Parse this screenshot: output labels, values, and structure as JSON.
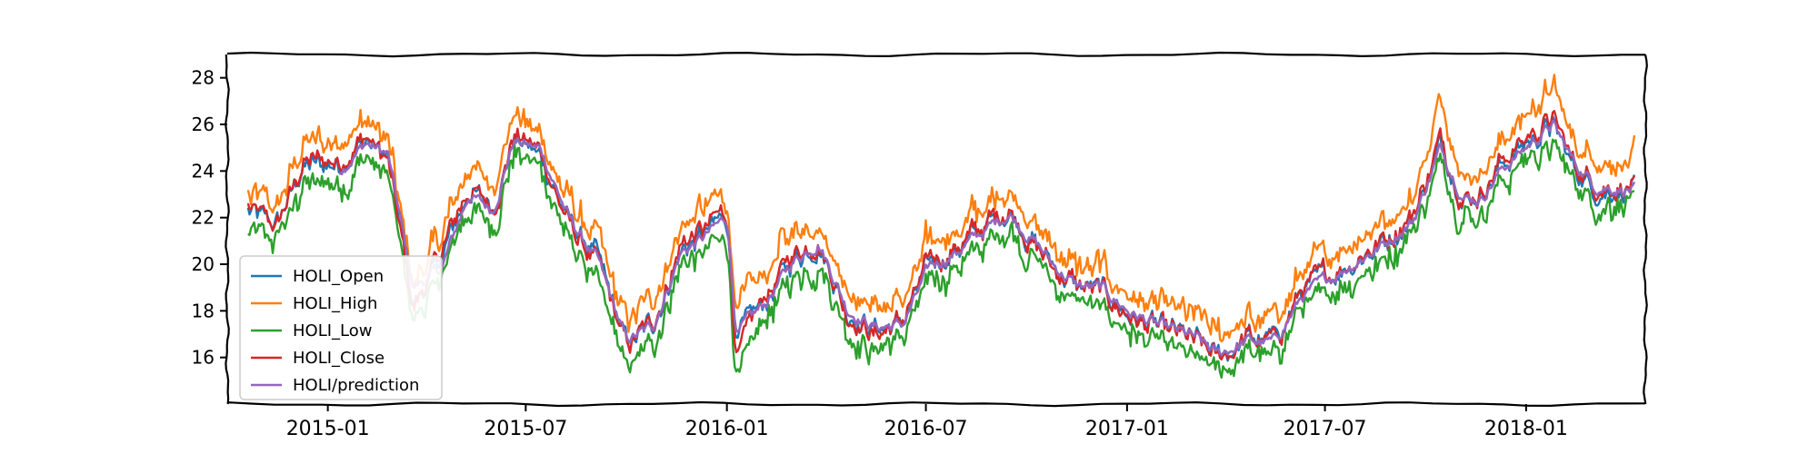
{
  "chart_data": {
    "type": "line",
    "title": "",
    "xlabel": "",
    "ylabel": "",
    "x_range": [
      "2014-10-01",
      "2018-04-20"
    ],
    "ylim": [
      14.0,
      29.0
    ],
    "y_ticks": [
      16,
      18,
      20,
      22,
      24,
      26,
      28
    ],
    "x_ticks": [
      "2015-01",
      "2015-07",
      "2016-01",
      "2016-07",
      "2017-01",
      "2017-07",
      "2018-01"
    ],
    "x_tick_dates": [
      "2015-01-01",
      "2015-07-01",
      "2016-01-01",
      "2016-07-01",
      "2017-01-01",
      "2017-07-01",
      "2018-01-01"
    ],
    "grid": false,
    "style": "xkcd hand-drawn",
    "legend": {
      "position": "bottom-left"
    },
    "x": [
      "2014-10-20",
      "2014-11-15",
      "2014-12-10",
      "2015-01-10",
      "2015-02-05",
      "2015-02-25",
      "2015-03-20",
      "2015-04-15",
      "2015-05-10",
      "2015-06-01",
      "2015-06-20",
      "2015-07-15",
      "2015-08-10",
      "2015-09-05",
      "2015-10-01",
      "2015-10-25",
      "2015-11-20",
      "2015-12-10",
      "2016-01-01",
      "2016-01-10",
      "2016-02-05",
      "2016-03-01",
      "2016-03-25",
      "2016-04-20",
      "2016-05-15",
      "2016-06-10",
      "2016-07-05",
      "2016-07-25",
      "2016-08-20",
      "2016-09-15",
      "2016-10-10",
      "2016-10-25",
      "2016-11-15",
      "2016-12-10",
      "2017-01-05",
      "2017-02-01",
      "2017-03-01",
      "2017-03-25",
      "2017-04-20",
      "2017-05-15",
      "2017-06-10",
      "2017-07-05",
      "2017-08-01",
      "2017-08-25",
      "2017-09-20",
      "2017-10-15",
      "2017-11-05",
      "2017-11-20",
      "2017-12-10",
      "2018-01-01",
      "2018-01-25",
      "2018-02-15",
      "2018-03-05",
      "2018-03-20",
      "2018-04-10"
    ],
    "series": [
      {
        "name": "HOLI_Open",
        "color": "#1f77b4",
        "values": [
          22.2,
          21.6,
          24.2,
          24.3,
          25.3,
          24.5,
          18.2,
          20.2,
          23.2,
          22.5,
          25.4,
          24.6,
          21.8,
          20.2,
          16.5,
          17.4,
          20.6,
          21.2,
          22.0,
          16.8,
          18.4,
          20.2,
          21.0,
          18.0,
          17.2,
          17.5,
          20.0,
          20.5,
          21.4,
          22.3,
          20.8,
          20.0,
          19.0,
          18.8,
          17.8,
          17.2,
          16.8,
          16.0,
          16.8,
          16.7,
          18.8,
          19.5,
          20.3,
          21.0,
          22.0,
          25.2,
          22.8,
          23.0,
          24.3,
          25.2,
          26.0,
          24.0,
          23.3,
          23.2,
          23.3
        ]
      },
      {
        "name": "HOLI_High",
        "color": "#ff7f0e",
        "values": [
          22.8,
          22.2,
          25.1,
          25.1,
          26.2,
          25.2,
          19.0,
          21.1,
          24.2,
          23.2,
          26.4,
          25.4,
          22.6,
          20.8,
          17.3,
          18.3,
          21.6,
          22.2,
          22.6,
          17.8,
          19.5,
          21.4,
          21.7,
          18.9,
          18.1,
          18.3,
          20.8,
          21.3,
          22.1,
          23.1,
          21.5,
          20.7,
          19.8,
          19.5,
          18.5,
          17.9,
          17.6,
          16.8,
          17.4,
          17.4,
          19.5,
          20.2,
          21.1,
          21.8,
          22.8,
          26.8,
          23.7,
          23.9,
          25.2,
          26.3,
          27.4,
          25.0,
          24.5,
          24.3,
          24.4
        ]
      },
      {
        "name": "HOLI_Low",
        "color": "#2ca02c",
        "values": [
          21.5,
          21.0,
          23.5,
          23.5,
          24.6,
          23.8,
          17.6,
          19.6,
          22.6,
          21.8,
          24.9,
          24.1,
          21.0,
          19.3,
          15.6,
          16.7,
          20.0,
          20.6,
          21.2,
          15.2,
          17.8,
          19.5,
          20.4,
          17.3,
          16.4,
          16.9,
          19.4,
          19.9,
          20.8,
          21.8,
          20.2,
          19.3,
          18.5,
          18.1,
          17.2,
          16.6,
          16.1,
          15.4,
          16.3,
          16.1,
          18.2,
          18.9,
          19.7,
          20.4,
          21.5,
          24.6,
          22.2,
          22.4,
          23.6,
          24.6,
          25.2,
          23.5,
          22.8,
          22.8,
          23.0
        ]
      },
      {
        "name": "HOLI_Close",
        "color": "#d62728",
        "values": [
          22.4,
          21.5,
          24.4,
          24.4,
          25.5,
          24.4,
          18.1,
          20.5,
          23.3,
          22.4,
          25.6,
          24.8,
          21.6,
          20.0,
          16.4,
          17.5,
          20.9,
          21.4,
          22.3,
          16.0,
          18.6,
          20.4,
          21.1,
          17.9,
          17.0,
          17.6,
          20.1,
          20.6,
          21.5,
          22.5,
          20.7,
          19.9,
          19.1,
          18.7,
          17.7,
          17.1,
          16.7,
          15.9,
          16.8,
          16.6,
          18.9,
          19.6,
          20.4,
          21.1,
          22.2,
          25.4,
          22.9,
          23.1,
          24.5,
          25.4,
          26.3,
          24.2,
          23.5,
          23.4,
          23.3
        ]
      },
      {
        "name": "HOLI/prediction",
        "color": "#9467bd",
        "values": [
          null,
          null,
          null,
          24.0,
          25.2,
          24.7,
          19.0,
          19.8,
          23.0,
          22.3,
          25.3,
          24.9,
          21.9,
          20.1,
          16.7,
          17.3,
          20.5,
          21.1,
          22.0,
          17.0,
          18.3,
          20.1,
          21.0,
          18.1,
          17.3,
          17.4,
          19.9,
          20.4,
          21.3,
          22.2,
          20.9,
          20.0,
          19.1,
          18.9,
          17.9,
          17.3,
          16.9,
          16.1,
          16.7,
          16.6,
          18.6,
          19.4,
          20.2,
          20.9,
          21.9,
          25.0,
          22.9,
          22.8,
          24.1,
          25.0,
          26.0,
          24.3,
          23.4,
          23.3,
          23.2
        ]
      }
    ]
  }
}
